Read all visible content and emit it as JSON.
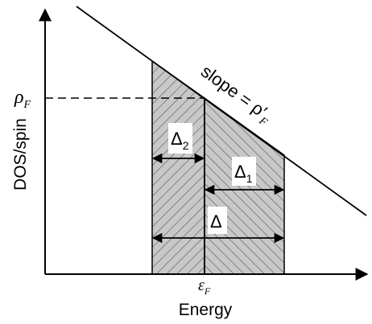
{
  "labels": {
    "y_axis": "DOS/spin",
    "x_axis": "Energy",
    "rho": "ρ",
    "rho_sub": "F",
    "eps": "ε",
    "eps_sub": "F",
    "slope": "slope = ρ′",
    "slope_sub": "F",
    "delta": "Δ",
    "delta1_sub": "1",
    "delta2_sub": "2"
  }
}
